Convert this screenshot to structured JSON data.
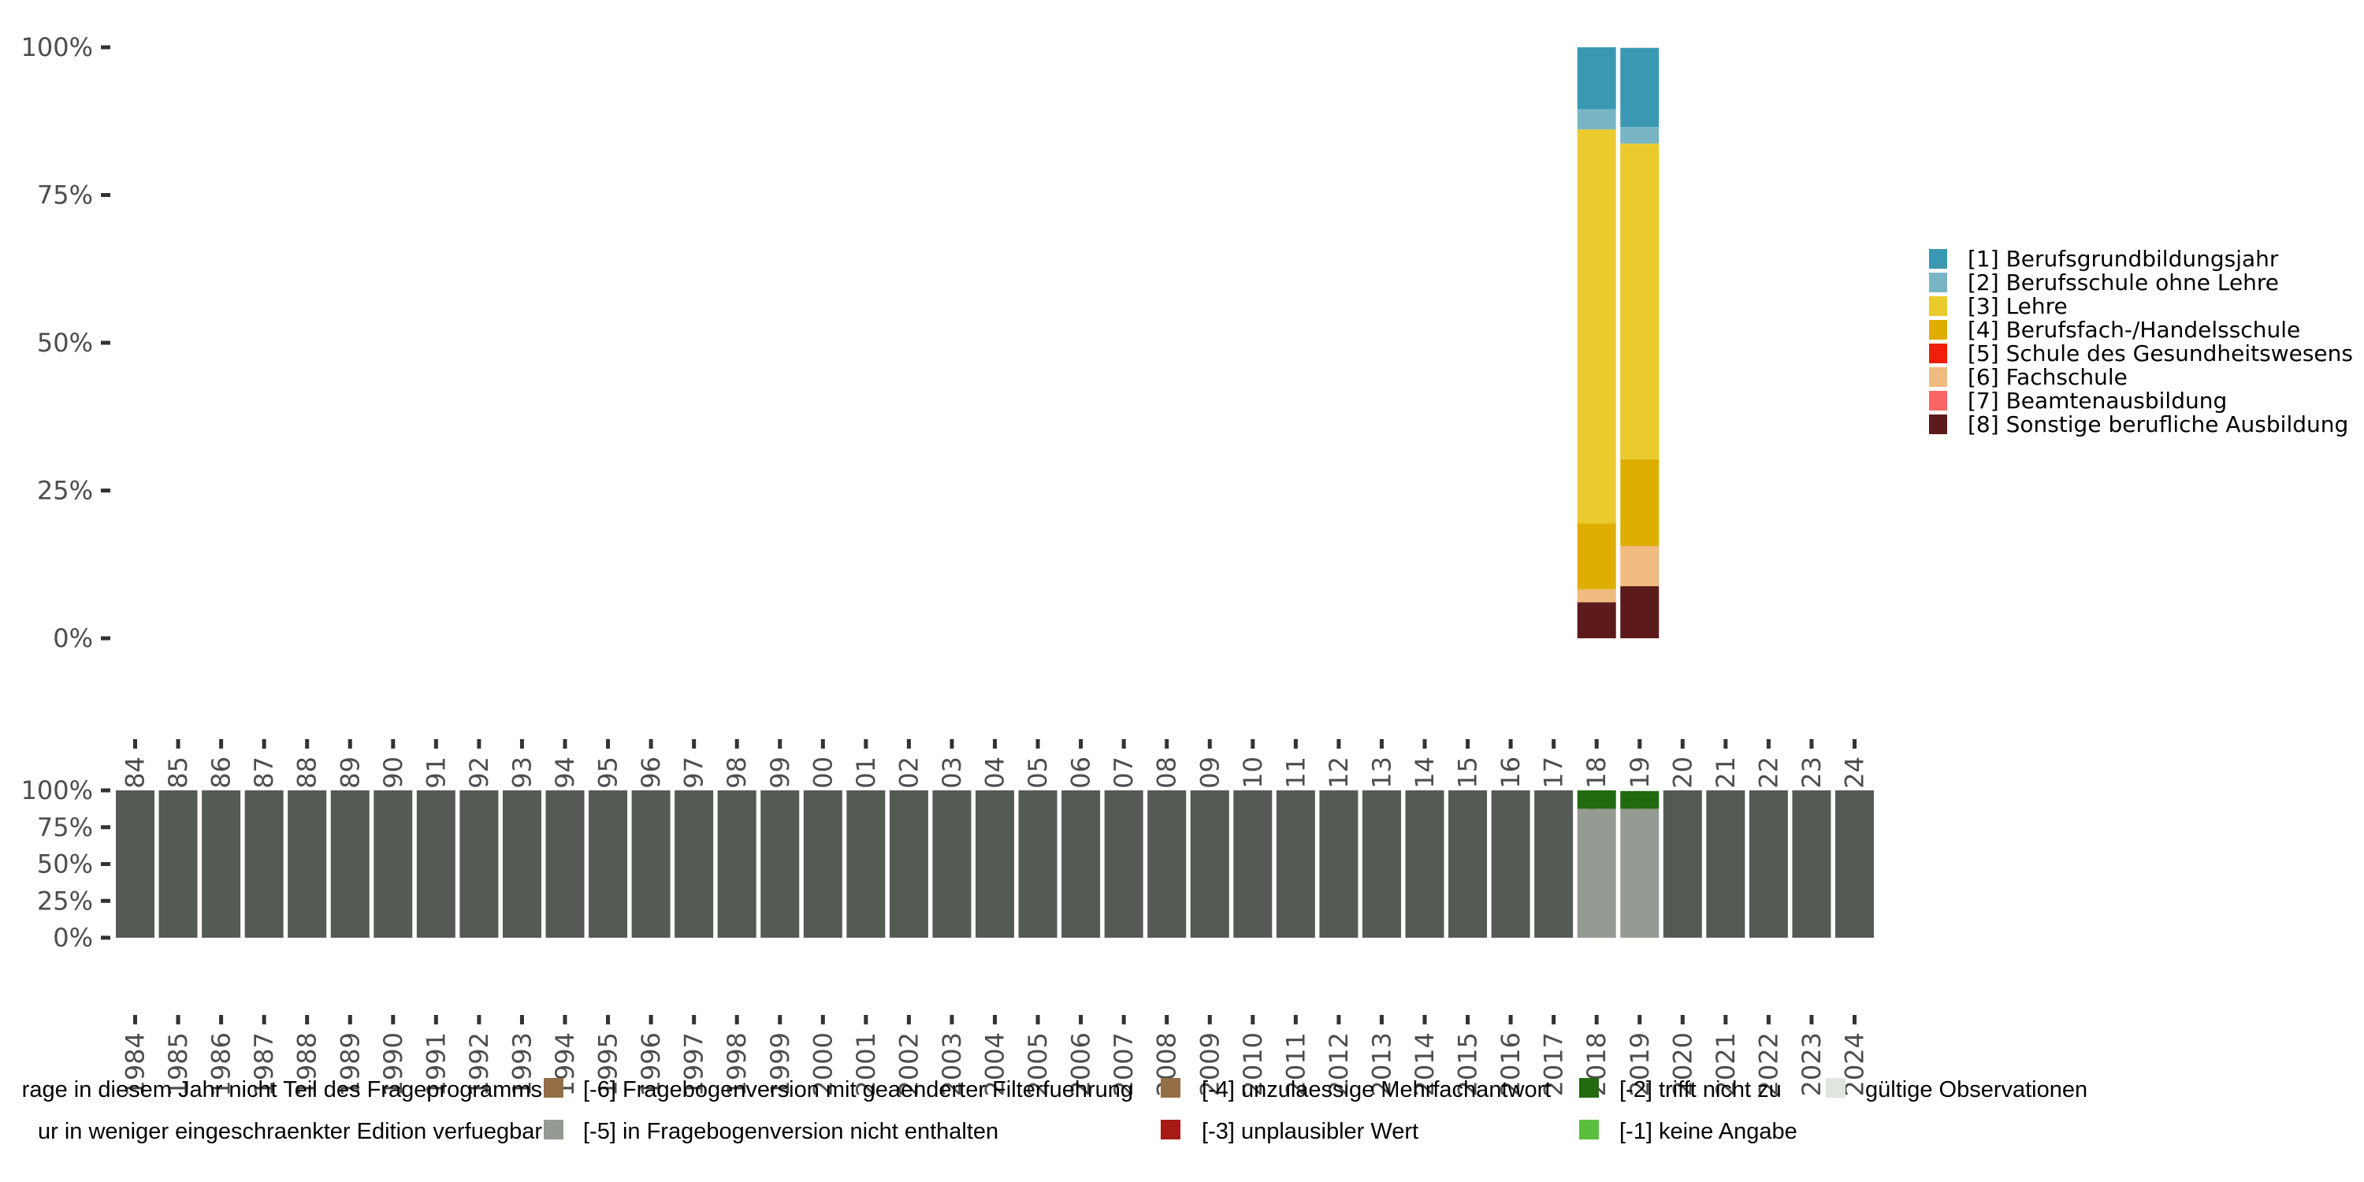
{
  "chart_data": [
    {
      "type": "bar",
      "stacked": true,
      "title": "",
      "xlabel": "",
      "ylabel": "",
      "ylim": [
        0,
        1
      ],
      "y_ticks": [
        "0%",
        "25%",
        "50%",
        "75%",
        "100%"
      ],
      "categories": [
        "1984",
        "1985",
        "1986",
        "1987",
        "1988",
        "1989",
        "1990",
        "1991",
        "1992",
        "1993",
        "1994",
        "1995",
        "1996",
        "1997",
        "1998",
        "1999",
        "2000",
        "2001",
        "2002",
        "2003",
        "2004",
        "2005",
        "2006",
        "2007",
        "2008",
        "2009",
        "2010",
        "2011",
        "2012",
        "2013",
        "2014",
        "2015",
        "2016",
        "2017",
        "2018",
        "2019",
        "2020",
        "2021",
        "2022",
        "2023",
        "2024"
      ],
      "legend_position": "right",
      "series": [
        {
          "name": "[8] Sonstige berufliche Ausbildung",
          "color": "#5c1a1a",
          "values": {
            "2018": 6.1,
            "2019": 8.8
          }
        },
        {
          "name": "[7] Beamtenausbildung",
          "color": "#f96465",
          "values": {}
        },
        {
          "name": "[6] Fachschule",
          "color": "#efbb7e",
          "values": {
            "2018": 2.2,
            "2019": 6.8
          }
        },
        {
          "name": "[5] Schule des Gesundheitswesens",
          "color": "#f21d0a",
          "values": {}
        },
        {
          "name": "[4] Berufsfach-/Handelsschule",
          "color": "#dfae00",
          "values": {
            "2018": 11.1,
            "2019": 14.7
          }
        },
        {
          "name": "[3] Lehre",
          "color": "#eaca2c",
          "values": {
            "2018": 66.7,
            "2019": 53.4
          }
        },
        {
          "name": "[2] Berufsschule ohne Lehre",
          "color": "#79b6c5",
          "values": {
            "2018": 3.4,
            "2019": 2.8
          }
        },
        {
          "name": "[1] Berufsgrundbildungsjahr",
          "color": "#3b98b2",
          "values": {
            "2018": 10.5,
            "2019": 13.4
          }
        }
      ]
    },
    {
      "type": "bar",
      "stacked": true,
      "ylim": [
        0,
        1
      ],
      "y_ticks": [
        "0%",
        "25%",
        "50%",
        "75%",
        "100%"
      ],
      "legend_position": "bottom",
      "series": [
        {
          "name": "rage in diesem Jahr nicht Teil des Frageprogramms",
          "color": "#555a55",
          "default": 100,
          "values": {
            "2018": 0,
            "2019": 0
          }
        },
        {
          "name": "ur in weniger eingeschraenkter Edition verfuegbar",
          "color": "#5a3a17",
          "values": {}
        },
        {
          "name": "[-6] Fragebogenversion mit geaenderter Filterfuehrung",
          "color": "#946e47",
          "values": {}
        },
        {
          "name": "[-5] in Fragebogenversion nicht enthalten",
          "color": "#959a92",
          "values": {
            "2018": 87.5,
            "2019": 87.5
          }
        },
        {
          "name": "[-4] unzulaessige Mehrfachantwort",
          "color": "#946e47",
          "values": {}
        },
        {
          "name": "[-3] unplausibler Wert",
          "color": "#a51c17",
          "values": {}
        },
        {
          "name": "[-2] trifft nicht zu",
          "color": "#216a10",
          "values": {
            "2018": 12.5,
            "2019": 12.0
          }
        },
        {
          "name": "[-1] keine Angabe",
          "color": "#5bbf3e",
          "values": {}
        },
        {
          "name": "gültige Observationen",
          "color": "#e0e5e0",
          "values": {
            "2019": 0.5
          }
        }
      ]
    }
  ]
}
